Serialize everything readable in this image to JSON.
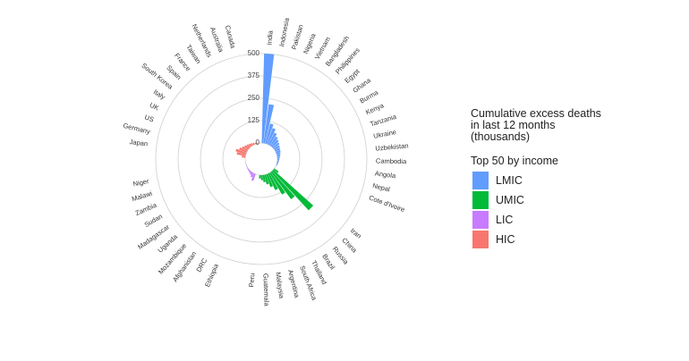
{
  "chart_data": {
    "type": "bar",
    "subtype": "radial-bar",
    "title_lines": [
      "Cumulative excess deaths",
      "in last 12 months",
      "(thousands)"
    ],
    "legend_subtitle": "Top 50 by income",
    "radial_ticks": [
      0,
      125,
      250,
      375,
      500
    ],
    "rlim": [
      0,
      500
    ],
    "legend_placement": "right",
    "groups": [
      {
        "name": "LMIC",
        "color": "#619CFF",
        "countries": [
          {
            "name": "India",
            "value": 520
          },
          {
            "name": "Indonesia",
            "value": 220
          },
          {
            "name": "Pakistan",
            "value": 115
          },
          {
            "name": "Nigeria",
            "value": 95
          },
          {
            "name": "Vietnam",
            "value": 75
          },
          {
            "name": "Bangladesh",
            "value": 60
          },
          {
            "name": "Philippines",
            "value": 50
          },
          {
            "name": "Egypt",
            "value": 42
          },
          {
            "name": "Ghana",
            "value": 35
          },
          {
            "name": "Burma",
            "value": 30
          },
          {
            "name": "Kenya",
            "value": 26
          },
          {
            "name": "Tanzania",
            "value": 22
          },
          {
            "name": "Ukraine",
            "value": 18
          },
          {
            "name": "Uzbekistan",
            "value": 14
          },
          {
            "name": "Cambodia",
            "value": 11
          },
          {
            "name": "Angola",
            "value": 9
          },
          {
            "name": "Nepal",
            "value": 7
          },
          {
            "name": "Cote d'Ivoire",
            "value": 5
          }
        ]
      },
      {
        "name": "UMIC",
        "color": "#00BA38",
        "countries": [
          {
            "name": "Iran",
            "value": 30
          },
          {
            "name": "China",
            "value": 300
          },
          {
            "name": "Russia",
            "value": 190
          },
          {
            "name": "Brazil",
            "value": 140
          },
          {
            "name": "Thailand",
            "value": 100
          },
          {
            "name": "South Africa",
            "value": 75
          },
          {
            "name": "Argentina",
            "value": 55
          },
          {
            "name": "Malaysia",
            "value": 40
          },
          {
            "name": "Guatemala",
            "value": 28
          },
          {
            "name": "Peru",
            "value": 18
          }
        ]
      },
      {
        "name": "LIC",
        "color": "#C77CFF",
        "countries": [
          {
            "name": "Ethiopia",
            "value": 40
          },
          {
            "name": "DRC",
            "value": 25
          },
          {
            "name": "Afghanistan",
            "value": 15
          },
          {
            "name": "Mozambique",
            "value": 10
          },
          {
            "name": "Uganda",
            "value": 7
          },
          {
            "name": "Madagascar",
            "value": 5
          },
          {
            "name": "Sudan",
            "value": 3
          },
          {
            "name": "Zambia",
            "value": 2
          },
          {
            "name": "Malawi",
            "value": 1
          },
          {
            "name": "Niger",
            "value": 1
          }
        ]
      },
      {
        "name": "HIC",
        "color": "#F8766D",
        "countries": [
          {
            "name": "Japan",
            "value": 20
          },
          {
            "name": "Germany",
            "value": 50
          },
          {
            "name": "US",
            "value": 60
          },
          {
            "name": "UK",
            "value": 45
          },
          {
            "name": "Italy",
            "value": 35
          },
          {
            "name": "South Korea",
            "value": 28
          },
          {
            "name": "Spain",
            "value": 22
          },
          {
            "name": "France",
            "value": 18
          },
          {
            "name": "Taiwan",
            "value": 14
          },
          {
            "name": "Netherlands",
            "value": 10
          },
          {
            "name": "Australia",
            "value": 6
          },
          {
            "name": "Canada",
            "value": 4
          }
        ]
      }
    ]
  },
  "legend": [
    {
      "label": "LMIC",
      "color": "#619CFF"
    },
    {
      "label": "UMIC",
      "color": "#00BA38"
    },
    {
      "label": "LIC",
      "color": "#C77CFF"
    },
    {
      "label": "HIC",
      "color": "#F8766D"
    }
  ]
}
